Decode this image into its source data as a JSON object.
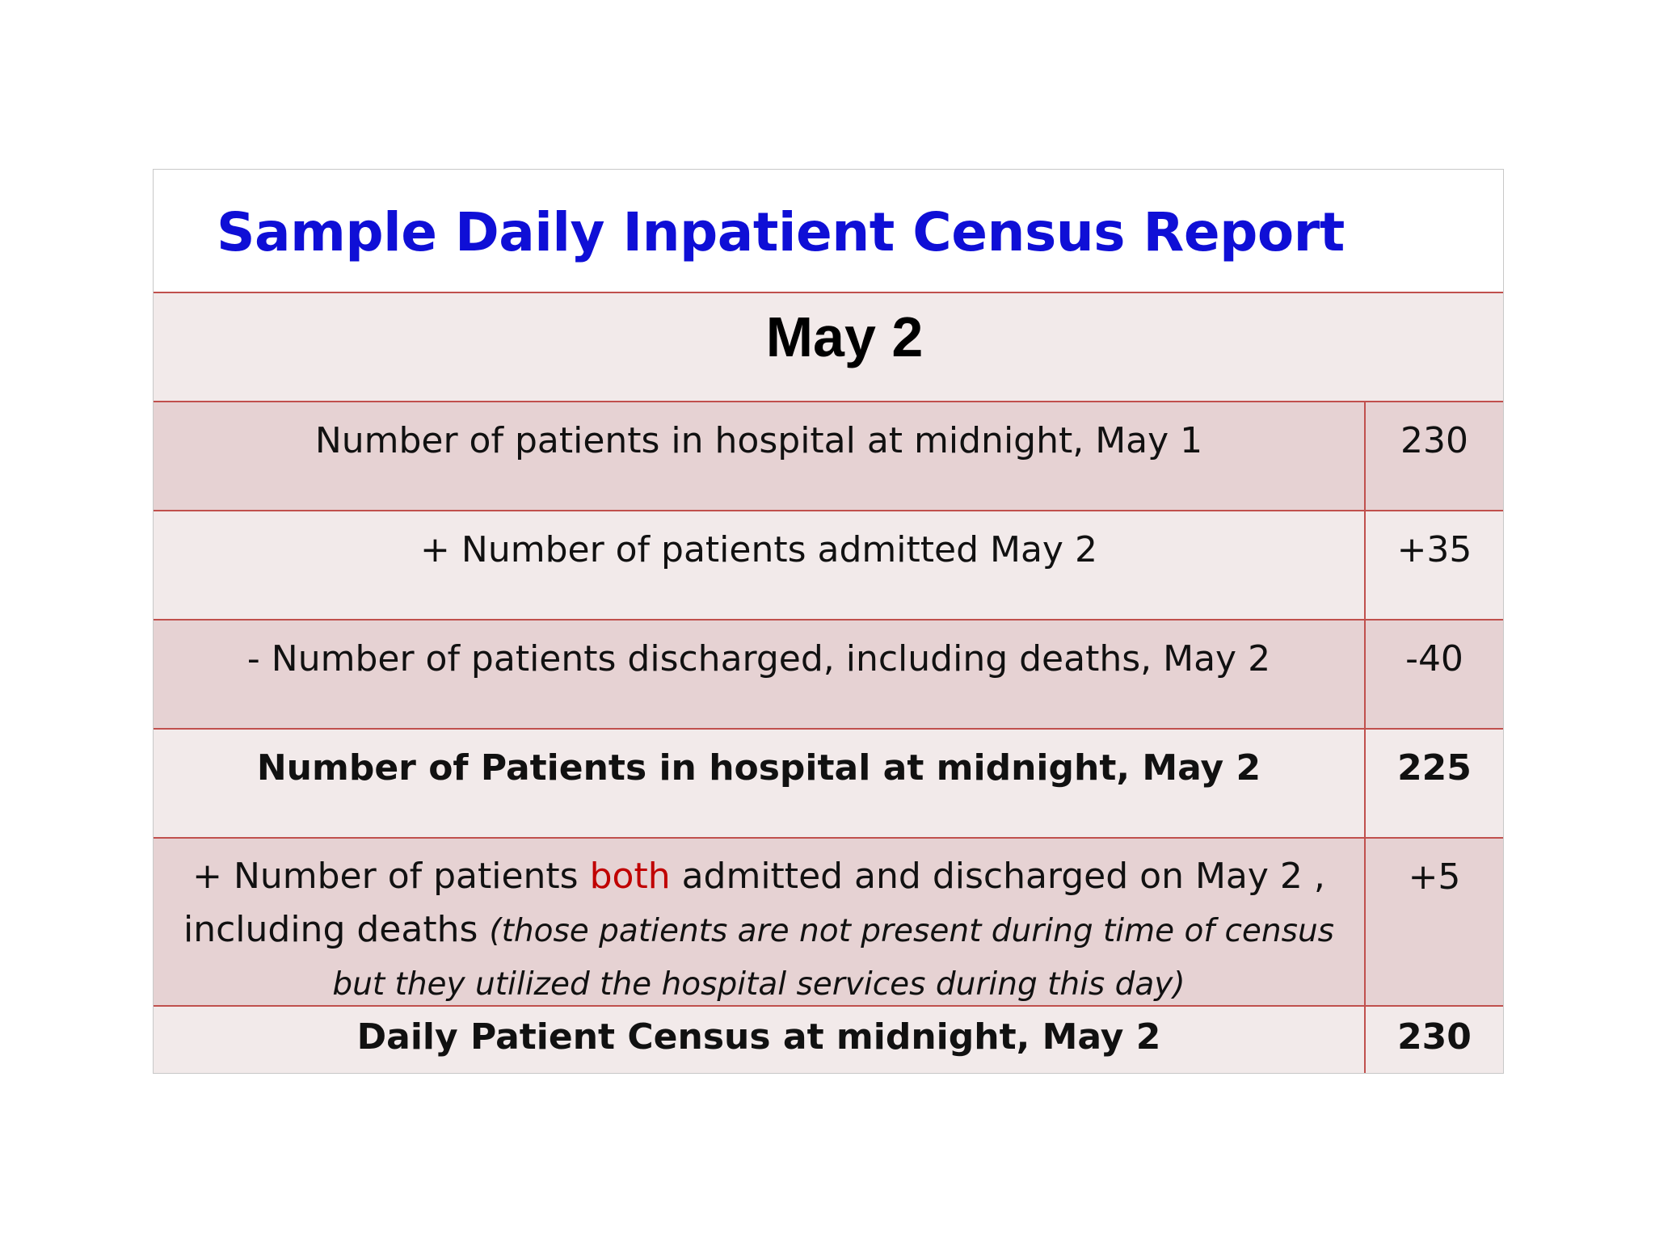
{
  "title": "Sample Daily Inpatient Census Report",
  "date": "May 2",
  "rows": [
    {
      "label": "Number of patients in hospital at midnight, May 1",
      "value": "230"
    },
    {
      "label": "+ Number of patients admitted May 2",
      "value": "+35"
    },
    {
      "label": "- Number of patients discharged, including deaths, May 2",
      "value": "-40"
    },
    {
      "label": "Number of Patients in hospital at midnight, May 2",
      "value": "225"
    },
    {
      "label_pre": "+ Number of patients ",
      "label_highlight": "both",
      "label_post": " admitted and discharged on May 2 , including deaths ",
      "label_note": "(those patients are not present during time of census but they utilized the hospital services during this day)",
      "value": "+5",
      "highlight_color": "#c00000"
    },
    {
      "label": "Daily Patient Census at midnight, May 2",
      "value": "230"
    }
  ],
  "colors": {
    "title": "#0f0fd6",
    "border": "#c0504d",
    "row_shade": "#e6d2d3",
    "row_light": "#f2eaea"
  }
}
